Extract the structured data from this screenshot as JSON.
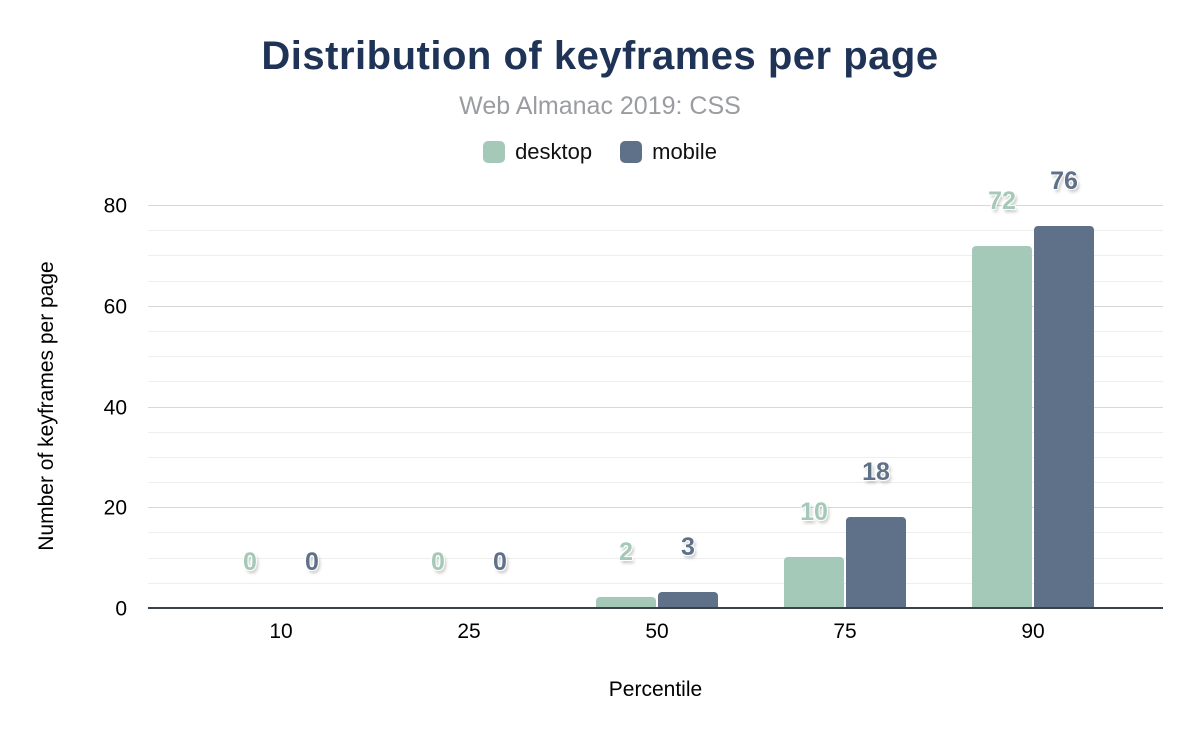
{
  "chart_data": {
    "type": "bar",
    "title": "Distribution of keyframes per page",
    "subtitle": "Web Almanac 2019: CSS",
    "xlabel": "Percentile",
    "ylabel": "Number of keyframes per page",
    "categories": [
      "10",
      "25",
      "50",
      "75",
      "90"
    ],
    "series": [
      {
        "name": "desktop",
        "color": "#a5c9b8",
        "values": [
          0,
          0,
          2,
          10,
          72
        ]
      },
      {
        "name": "mobile",
        "color": "#5f7189",
        "values": [
          0,
          0,
          3,
          18,
          76
        ]
      }
    ],
    "ylim": [
      0,
      80
    ],
    "yticks": [
      0,
      20,
      40,
      60,
      80
    ],
    "minor_grid_step": 5,
    "grid": true,
    "legend_position": "top"
  },
  "colors": {
    "title": "#1e3356",
    "subtitle": "#9a9ca1",
    "axis_line": "#3a414b",
    "gridline_minor": "#eeeeee",
    "gridline_major": "#d8d8d8",
    "tick_text": "#000000"
  }
}
